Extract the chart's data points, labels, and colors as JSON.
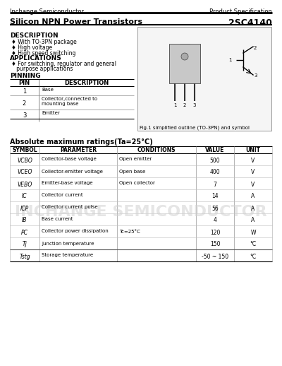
{
  "company": "Inchange Semiconductor",
  "spec_type": "Product Specification",
  "title": "Silicon NPN Power Transistors",
  "part_number": "2SC4140",
  "description_title": "DESCRIPTION",
  "description_items": [
    "♦ With TO-3PN package",
    "♦ High voltage",
    "♦ High speed switching"
  ],
  "applications_title": "APPLICATIONS",
  "applications_items": [
    "♦ For switching, regulator and general",
    "   purpose applications"
  ],
  "pinning_title": "PINNING",
  "pin_headers": [
    "PIN",
    "DESCRIPTION"
  ],
  "pin_rows": [
    [
      "1",
      "Base"
    ],
    [
      "2",
      "Collector,connected to\nmounting base"
    ],
    [
      "3",
      "Emitter"
    ]
  ],
  "fig_caption": "Fig.1 simplified outline (TO-3PN) and symbol",
  "abs_max_title": "Absolute maximum ratings(Ta=25°C)",
  "table_headers": [
    "SYMBOL",
    "PARAMETER",
    "CONDITIONS",
    "VALUE",
    "UNIT"
  ],
  "table_symbols": [
    "VCBO",
    "VCEO",
    "VEBO",
    "IC",
    "ICP",
    "IB",
    "PC",
    "Tj",
    "Tstg"
  ],
  "table_params": [
    "Collector-base voltage",
    "Collector-emitter voltage",
    "Emitter-base voltage",
    "Collector current",
    "Collector current pulse",
    "Base current",
    "Collector power dissipation",
    "Junction temperature",
    "Storage temperature"
  ],
  "table_conds": [
    "Open emitter",
    "Open base",
    "Open collector",
    "",
    "",
    "",
    "Tc=25°C",
    "",
    ""
  ],
  "table_values": [
    "500",
    "400",
    "7",
    "14",
    "56",
    "4",
    "120",
    "150",
    "-50 ~ 150"
  ],
  "table_units": [
    "V",
    "V",
    "V",
    "A",
    "A",
    "A",
    "W",
    "°C",
    "°C"
  ],
  "watermark": "INCHANGE SEMICONDUCTOR",
  "bg_color": "#ffffff"
}
